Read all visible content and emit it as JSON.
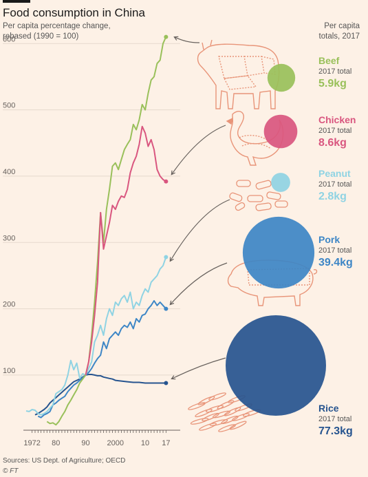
{
  "title": "Food consumption in China",
  "subtitle": "Per capita percentage change, rebased (1990 = 100)",
  "side_header": "Per capita totals, 2017",
  "source": "Sources: US Dept. of Agriculture; OECD",
  "credit": "© FT",
  "colors": {
    "background": "#fdf1e6",
    "beef": "#99c05a",
    "chicken": "#d9567f",
    "peanut": "#8fd3e3",
    "pork": "#3d86c6",
    "rice": "#26548f",
    "illustration": "#e89478",
    "arrow": "#66605c"
  },
  "chart_data": {
    "type": "line",
    "title": "Food consumption in China",
    "subtitle": "Per capita percentage change, rebased (1990 = 100)",
    "x_ticks": [
      {
        "x": 1972,
        "label": "1972"
      },
      {
        "x": 1980,
        "label": "80"
      },
      {
        "x": 1990,
        "label": "90"
      },
      {
        "x": 2000,
        "label": "2000"
      },
      {
        "x": 2010,
        "label": "10"
      },
      {
        "x": 2017,
        "label": "17"
      }
    ],
    "xlim": [
      1970,
      2019
    ],
    "y_ticks": [
      100,
      200,
      300,
      400,
      500,
      600
    ],
    "ylim": [
      20,
      620
    ],
    "grid": true,
    "series": [
      {
        "key": "beef",
        "name": "Beef",
        "color": "#99c05a",
        "x": [
          1977,
          1978,
          1979,
          1980,
          1981,
          1982,
          1983,
          1984,
          1985,
          1986,
          1987,
          1988,
          1989,
          1990,
          1991,
          1992,
          1993,
          1994,
          1995,
          1996,
          1997,
          1998,
          1999,
          2000,
          2001,
          2002,
          2003,
          2004,
          2005,
          2006,
          2007,
          2008,
          2009,
          2010,
          2011,
          2012,
          2013,
          2014,
          2015,
          2016,
          2017
        ],
        "y": [
          30,
          27,
          28,
          25,
          30,
          38,
          45,
          55,
          62,
          70,
          78,
          88,
          94,
          100,
          120,
          160,
          210,
          270,
          345,
          300,
          350,
          380,
          415,
          420,
          410,
          425,
          440,
          448,
          455,
          478,
          470,
          485,
          508,
          500,
          525,
          545,
          550,
          570,
          575,
          600,
          610
        ]
      },
      {
        "key": "chicken",
        "name": "Chicken",
        "color": "#d9567f",
        "x": [
          1990,
          1991,
          1992,
          1993,
          1994,
          1995,
          1996,
          1997,
          1998,
          1999,
          2000,
          2001,
          2002,
          2003,
          2004,
          2005,
          2006,
          2007,
          2008,
          2009,
          2010,
          2011,
          2012,
          2013,
          2014,
          2015,
          2016,
          2017
        ],
        "y": [
          100,
          120,
          150,
          190,
          240,
          345,
          290,
          310,
          330,
          356,
          350,
          362,
          370,
          368,
          380,
          405,
          420,
          430,
          448,
          475,
          465,
          445,
          455,
          440,
          410,
          400,
          395,
          392
        ]
      },
      {
        "key": "peanut",
        "name": "Peanut",
        "color": "#8fd3e3",
        "x": [
          1970,
          1971,
          1972,
          1973,
          1974,
          1975,
          1976,
          1977,
          1978,
          1979,
          1980,
          1981,
          1982,
          1983,
          1984,
          1985,
          1986,
          1987,
          1988,
          1989,
          1990,
          1991,
          1992,
          1993,
          1994,
          1995,
          1996,
          1997,
          1998,
          1999,
          2000,
          2001,
          2002,
          2003,
          2004,
          2005,
          2006,
          2007,
          2008,
          2009,
          2010,
          2011,
          2012,
          2013,
          2014,
          2015,
          2016,
          2017
        ],
        "y": [
          46,
          45,
          48,
          47,
          42,
          40,
          42,
          45,
          50,
          55,
          72,
          75,
          78,
          85,
          100,
          122,
          108,
          118,
          95,
          102,
          100,
          110,
          120,
          150,
          160,
          175,
          160,
          185,
          200,
          190,
          210,
          205,
          215,
          220,
          210,
          225,
          200,
          210,
          205,
          220,
          230,
          225,
          240,
          245,
          250,
          260,
          265,
          278
        ]
      },
      {
        "key": "pork",
        "name": "Pork",
        "color": "#3d86c6",
        "x": [
          1974,
          1975,
          1976,
          1977,
          1978,
          1979,
          1980,
          1981,
          1982,
          1983,
          1984,
          1985,
          1986,
          1987,
          1988,
          1989,
          1990,
          1991,
          1992,
          1993,
          1994,
          1995,
          1996,
          1997,
          1998,
          1999,
          2000,
          2001,
          2002,
          2003,
          2004,
          2005,
          2006,
          2007,
          2008,
          2009,
          2010,
          2011,
          2012,
          2013,
          2014,
          2015,
          2016,
          2017
        ],
        "y": [
          38,
          36,
          40,
          42,
          45,
          55,
          58,
          62,
          65,
          68,
          75,
          80,
          85,
          88,
          92,
          96,
          100,
          104,
          110,
          118,
          125,
          130,
          150,
          140,
          155,
          160,
          165,
          160,
          170,
          175,
          172,
          180,
          170,
          185,
          180,
          190,
          192,
          200,
          205,
          212,
          205,
          210,
          205,
          200
        ]
      },
      {
        "key": "rice",
        "name": "Rice",
        "color": "#26548f",
        "x": [
          1973,
          1974,
          1975,
          1976,
          1977,
          1978,
          1979,
          1980,
          1981,
          1982,
          1983,
          1984,
          1985,
          1986,
          1987,
          1988,
          1989,
          1990,
          1991,
          1992,
          1993,
          1994,
          1995,
          1996,
          1997,
          1998,
          1999,
          2000,
          2002,
          2004,
          2006,
          2008,
          2010,
          2012,
          2014,
          2016,
          2017
        ],
        "y": [
          40,
          42,
          45,
          48,
          52,
          58,
          62,
          66,
          70,
          74,
          78,
          82,
          86,
          90,
          92,
          94,
          97,
          100,
          101,
          101,
          100,
          99,
          99,
          97,
          96,
          95,
          94,
          92,
          91,
          90,
          89,
          89,
          88,
          88,
          88,
          88,
          88
        ]
      }
    ],
    "totals": [
      {
        "key": "beef",
        "name": "Beef",
        "caption": "2017 total",
        "value": "5.9kg",
        "kg": 5.9
      },
      {
        "key": "chicken",
        "name": "Chicken",
        "caption": "2017 total",
        "value": "8.6kg",
        "kg": 8.6
      },
      {
        "key": "peanut",
        "name": "Peanut",
        "caption": "2017 total",
        "value": "2.8kg",
        "kg": 2.8
      },
      {
        "key": "pork",
        "name": "Pork",
        "caption": "2017 total",
        "value": "39.4kg",
        "kg": 39.4
      },
      {
        "key": "rice",
        "name": "Rice",
        "caption": "2017 total",
        "value": "77.3kg",
        "kg": 77.3
      }
    ]
  }
}
